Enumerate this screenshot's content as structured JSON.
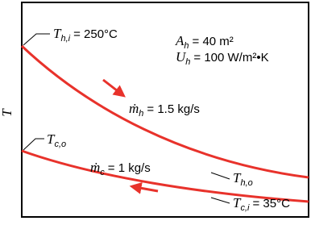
{
  "axis_label": "T",
  "labels": {
    "hot_inlet": {
      "symbol": "T",
      "subscript": "h,i",
      "text": "= 250°C"
    },
    "area": {
      "symbol": "A",
      "subscript": "h",
      "text": "= 40 m²"
    },
    "coefficient": {
      "symbol": "U",
      "subscript": "h",
      "text": "= 100 W/m²•K"
    },
    "hot_flow": {
      "symbol": "ṁ",
      "subscript": "h",
      "text": "= 1.5 kg/s"
    },
    "cold_outlet": {
      "symbol": "T",
      "subscript": "c,o"
    },
    "cold_flow": {
      "symbol": "ṁ",
      "subscript": "c",
      "text": "= 1 kg/s"
    },
    "hot_outlet": {
      "symbol": "T",
      "subscript": "h,o"
    },
    "cold_inlet": {
      "symbol": "T",
      "subscript": "c,i",
      "text": "= 35°C"
    }
  }
}
